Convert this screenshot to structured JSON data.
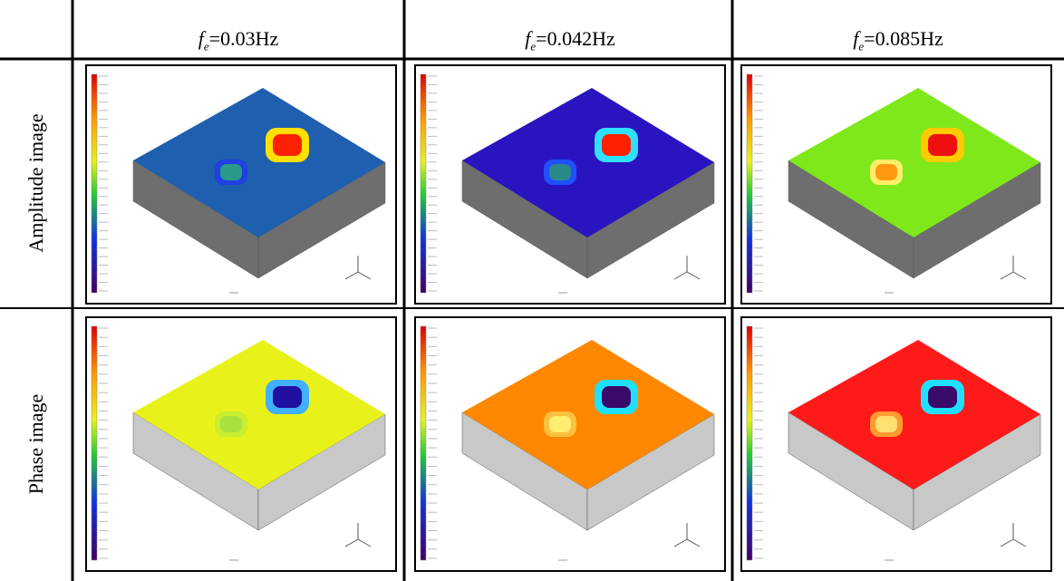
{
  "header": {
    "columns": [
      {
        "symbol": "f",
        "subscript": "e",
        "text": "=0.03Hz"
      },
      {
        "symbol": "f",
        "subscript": "e",
        "text": "=0.042Hz"
      },
      {
        "symbol": "f",
        "subscript": "e",
        "text": "=0.085Hz"
      }
    ]
  },
  "rows": [
    {
      "label": "Amplitude image"
    },
    {
      "label": "Phase image"
    }
  ]
}
